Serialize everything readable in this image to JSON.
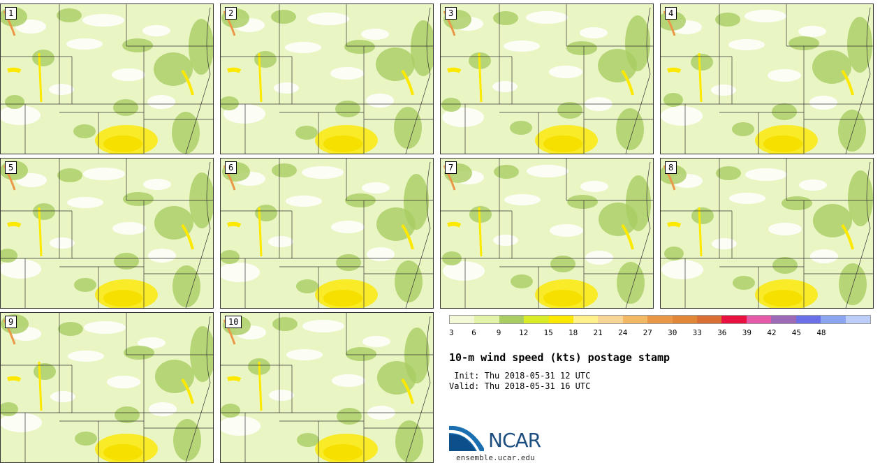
{
  "members": [
    {
      "label": "1"
    },
    {
      "label": "2"
    },
    {
      "label": "3"
    },
    {
      "label": "4"
    },
    {
      "label": "5"
    },
    {
      "label": "6"
    },
    {
      "label": "7"
    },
    {
      "label": "8"
    },
    {
      "label": "9"
    },
    {
      "label": "10"
    }
  ],
  "legend": {
    "ticks": [
      "3",
      "6",
      "9",
      "12",
      "15",
      "18",
      "21",
      "24",
      "27",
      "30",
      "33",
      "36",
      "39",
      "42",
      "45",
      "48"
    ],
    "colors": [
      "#f2f8d8",
      "#e2f2a6",
      "#a9cd63",
      "#d9ec27",
      "#fde900",
      "#fef08a",
      "#f7d695",
      "#f2b866",
      "#ea9848",
      "#e08738",
      "#d96f35",
      "#e8113f",
      "#e45aa7",
      "#9d6bb5",
      "#6b6fe8",
      "#8ca5f2",
      "#bccdf7"
    ]
  },
  "title": "10-m wind speed (kts) postage stamp",
  "init": "Thu 2018-05-31 12 UTC",
  "valid": "Thu 2018-05-31 16 UTC",
  "init_label": " Init:",
  "valid_label": "Valid:",
  "logo_text": "NCAR",
  "logo_url": "ensemble.ucar.edu"
}
